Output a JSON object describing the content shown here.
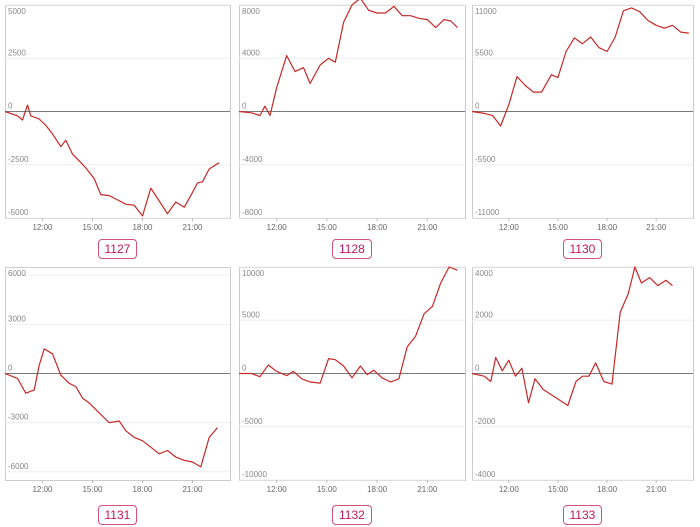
{
  "charts": [
    {
      "type": "line",
      "label": "1127",
      "color": "#c62828",
      "ylim": [
        -5000,
        5000
      ],
      "yticks": [
        5000,
        2500,
        0,
        -2500,
        -5000
      ],
      "xlim": [
        9.75,
        23.25
      ],
      "xticks": [
        12,
        15,
        18,
        21
      ],
      "xtick_labels": [
        "12:00",
        "15:00",
        "18:00",
        "21:00"
      ],
      "x": [
        9.75,
        10.5,
        10.8,
        11.1,
        11.3,
        11.8,
        12.2,
        12.6,
        13.1,
        13.4,
        13.8,
        14.3,
        14.6,
        15.1,
        15.5,
        16.0,
        16.5,
        17.0,
        17.5,
        18.0,
        18.5,
        19.0,
        19.5,
        20.0,
        20.5,
        21.0,
        21.3,
        21.6,
        22.0,
        22.6
      ],
      "y": [
        0,
        -200,
        -400,
        300,
        -200,
        -350,
        -650,
        -1050,
        -1650,
        -1350,
        -2000,
        -2400,
        -2650,
        -3150,
        -3900,
        -3950,
        -4150,
        -4350,
        -4400,
        -4900,
        -3600,
        -4200,
        -4800,
        -4250,
        -4500,
        -3800,
        -3350,
        -3300,
        -2700,
        -2400
      ]
    },
    {
      "type": "line",
      "label": "1128",
      "color": "#c62828",
      "ylim": [
        -8000,
        8000
      ],
      "yticks": [
        8000,
        4000,
        0,
        -4000,
        -8000
      ],
      "xlim": [
        9.75,
        23.25
      ],
      "xticks": [
        12,
        15,
        18,
        21
      ],
      "xtick_labels": [
        "12:00",
        "15:00",
        "18:00",
        "21:00"
      ],
      "x": [
        9.75,
        10.5,
        11.0,
        11.3,
        11.6,
        12.0,
        12.6,
        13.1,
        13.6,
        14.0,
        14.6,
        15.1,
        15.5,
        16.0,
        16.5,
        17.0,
        17.5,
        18.0,
        18.5,
        19.0,
        19.5,
        20.0,
        20.5,
        21.0,
        21.5,
        22.0,
        22.4,
        22.8
      ],
      "y": [
        0,
        -100,
        -300,
        400,
        -300,
        1800,
        4200,
        3000,
        3300,
        2100,
        3500,
        4000,
        3700,
        6700,
        8000,
        8500,
        7600,
        7400,
        7400,
        7900,
        7200,
        7200,
        7000,
        6900,
        6300,
        6900,
        6800,
        6300
      ]
    },
    {
      "type": "line",
      "label": "1130",
      "color": "#c62828",
      "ylim": [
        -11000,
        11000
      ],
      "yticks": [
        11000,
        5500,
        0,
        -5500,
        -11000
      ],
      "xlim": [
        9.75,
        23.25
      ],
      "xticks": [
        12,
        15,
        18,
        21
      ],
      "xtick_labels": [
        "12:00",
        "15:00",
        "18:00",
        "21:00"
      ],
      "x": [
        9.75,
        10.5,
        11.0,
        11.5,
        12.0,
        12.5,
        13.0,
        13.5,
        14.0,
        14.6,
        15.0,
        15.5,
        16.0,
        16.5,
        17.0,
        17.5,
        18.0,
        18.5,
        19.0,
        19.5,
        20.0,
        20.5,
        21.0,
        21.5,
        22.0,
        22.5,
        23.0
      ],
      "y": [
        0,
        -200,
        -400,
        -1500,
        700,
        3600,
        2700,
        2000,
        2000,
        3800,
        3500,
        6200,
        7600,
        7000,
        7700,
        6600,
        6200,
        7700,
        10400,
        10700,
        10300,
        9400,
        8900,
        8600,
        8900,
        8200,
        8100
      ]
    },
    {
      "type": "line",
      "label": "1131",
      "color": "#c62828",
      "ylim": [
        -6500,
        6500
      ],
      "yticks": [
        6000,
        3000,
        0,
        -3000,
        -6000
      ],
      "xlim": [
        9.75,
        23.25
      ],
      "xticks": [
        12,
        15,
        18,
        21
      ],
      "xtick_labels": [
        "12:00",
        "15:00",
        "18:00",
        "21:00"
      ],
      "x": [
        9.75,
        10.5,
        11.0,
        11.5,
        11.8,
        12.1,
        12.6,
        13.1,
        13.6,
        14.0,
        14.4,
        14.8,
        15.1,
        15.5,
        16.0,
        16.6,
        17.0,
        17.5,
        18.0,
        18.5,
        19.0,
        19.5,
        20.0,
        20.5,
        21.0,
        21.5,
        22.0,
        22.5
      ],
      "y": [
        0,
        -300,
        -1200,
        -1000,
        500,
        1500,
        1200,
        -100,
        -600,
        -800,
        -1500,
        -1800,
        -2100,
        -2500,
        -3000,
        -2900,
        -3500,
        -3900,
        -4100,
        -4500,
        -4900,
        -4700,
        -5100,
        -5300,
        -5400,
        -5700,
        -3900,
        -3300
      ]
    },
    {
      "type": "line",
      "label": "1132",
      "color": "#c62828",
      "ylim": [
        -10000,
        10000
      ],
      "yticks": [
        10000,
        5000,
        0,
        -5000,
        -10000
      ],
      "xlim": [
        9.75,
        23.25
      ],
      "xticks": [
        12,
        15,
        18,
        21
      ],
      "xtick_labels": [
        "12:00",
        "15:00",
        "18:00",
        "21:00"
      ],
      "x": [
        9.75,
        10.5,
        11.0,
        11.5,
        12.0,
        12.6,
        13.0,
        13.5,
        14.0,
        14.6,
        15.1,
        15.5,
        16.0,
        16.5,
        17.0,
        17.4,
        17.8,
        18.3,
        18.8,
        19.3,
        19.8,
        20.3,
        20.8,
        21.3,
        21.8,
        22.3,
        22.8
      ],
      "y": [
        0,
        0,
        -300,
        800,
        200,
        -200,
        200,
        -500,
        -800,
        -900,
        1400,
        1300,
        700,
        -400,
        700,
        -100,
        300,
        -400,
        -800,
        -500,
        2500,
        3500,
        5600,
        6300,
        8500,
        10000,
        9700
      ]
    },
    {
      "type": "line",
      "label": "1133",
      "color": "#c62828",
      "ylim": [
        -4000,
        4000
      ],
      "yticks": [
        4000,
        2000,
        0,
        -2000,
        -4000
      ],
      "xlim": [
        9.75,
        23.25
      ],
      "xticks": [
        12,
        15,
        18,
        21
      ],
      "xtick_labels": [
        "12:00",
        "15:00",
        "18:00",
        "21:00"
      ],
      "x": [
        9.75,
        10.5,
        10.9,
        11.2,
        11.6,
        12.0,
        12.4,
        12.8,
        13.2,
        13.6,
        14.1,
        14.6,
        15.1,
        15.6,
        16.1,
        16.5,
        16.9,
        17.3,
        17.8,
        18.3,
        18.8,
        19.3,
        19.7,
        20.1,
        20.6,
        21.1,
        21.6,
        22.0
      ],
      "y": [
        0,
        -100,
        -300,
        600,
        100,
        500,
        -100,
        200,
        -1100,
        -200,
        -600,
        -800,
        -1000,
        -1200,
        -300,
        -100,
        -100,
        400,
        -300,
        -400,
        2300,
        3000,
        4000,
        3400,
        3600,
        3300,
        3500,
        3300
      ]
    }
  ]
}
